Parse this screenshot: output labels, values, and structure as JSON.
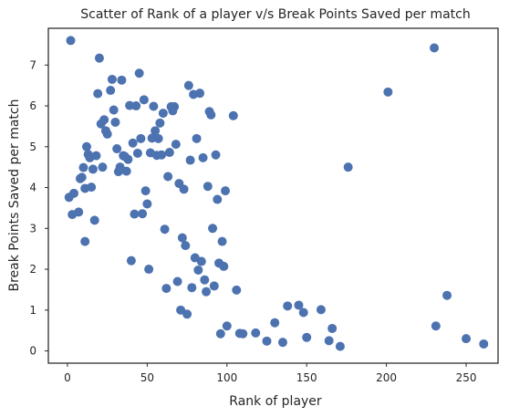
{
  "chart_data": {
    "type": "scatter",
    "title": "Scatter of Rank of a player v/s Break Points Saved per match",
    "xlabel": "Rank of player",
    "ylabel": "Break Points Saved per match",
    "xlim": [
      -12,
      270
    ],
    "ylim": [
      -0.3,
      7.9
    ],
    "xticks": [
      0,
      50,
      100,
      150,
      200,
      250
    ],
    "yticks": [
      0,
      1,
      2,
      3,
      4,
      5,
      6,
      7
    ],
    "grid": false,
    "legend": "none",
    "colors": {
      "marker": "#4c72b0",
      "axes": "#262626",
      "background": "#ffffff"
    },
    "series": [
      {
        "points": [
          [
            1,
            3.76
          ],
          [
            2,
            7.6
          ],
          [
            3,
            3.34
          ],
          [
            4,
            3.86
          ],
          [
            7,
            3.4
          ],
          [
            8,
            4.22
          ],
          [
            9,
            4.25
          ],
          [
            10,
            4.49
          ],
          [
            11,
            2.68
          ],
          [
            11,
            3.98
          ],
          [
            12,
            5.0
          ],
          [
            13,
            4.81
          ],
          [
            14,
            4.73
          ],
          [
            15,
            4.01
          ],
          [
            16,
            4.45
          ],
          [
            17,
            3.2
          ],
          [
            18,
            4.78
          ],
          [
            19,
            6.3
          ],
          [
            20,
            7.17
          ],
          [
            21,
            5.56
          ],
          [
            22,
            4.5
          ],
          [
            23,
            5.66
          ],
          [
            24,
            5.39
          ],
          [
            25,
            5.31
          ],
          [
            27,
            6.38
          ],
          [
            28,
            6.65
          ],
          [
            29,
            5.9
          ],
          [
            30,
            5.6
          ],
          [
            31,
            4.95
          ],
          [
            32,
            4.39
          ],
          [
            33,
            4.5
          ],
          [
            34,
            6.63
          ],
          [
            35,
            4.78
          ],
          [
            36,
            4.76
          ],
          [
            37,
            4.4
          ],
          [
            38,
            4.69
          ],
          [
            39,
            6.01
          ],
          [
            40,
            2.21
          ],
          [
            41,
            5.09
          ],
          [
            42,
            3.35
          ],
          [
            43,
            6.0
          ],
          [
            44,
            4.84
          ],
          [
            45,
            6.8
          ],
          [
            46,
            5.2
          ],
          [
            47,
            3.36
          ],
          [
            48,
            6.15
          ],
          [
            49,
            3.92
          ],
          [
            50,
            3.6
          ],
          [
            51,
            2.0
          ],
          [
            52,
            4.85
          ],
          [
            53,
            5.21
          ],
          [
            54,
            5.99
          ],
          [
            55,
            5.39
          ],
          [
            56,
            4.79
          ],
          [
            57,
            5.2
          ],
          [
            58,
            5.58
          ],
          [
            59,
            4.8
          ],
          [
            60,
            5.82
          ],
          [
            61,
            2.98
          ],
          [
            62,
            1.53
          ],
          [
            63,
            4.27
          ],
          [
            64,
            4.86
          ],
          [
            65,
            5.98
          ],
          [
            66,
            5.88
          ],
          [
            67,
            5.98
          ],
          [
            68,
            5.06
          ],
          [
            69,
            1.7
          ],
          [
            70,
            4.1
          ],
          [
            71,
            1.0
          ],
          [
            72,
            2.77
          ],
          [
            73,
            3.96
          ],
          [
            74,
            2.58
          ],
          [
            75,
            0.9
          ],
          [
            76,
            6.5
          ],
          [
            77,
            4.67
          ],
          [
            78,
            1.55
          ],
          [
            79,
            6.28
          ],
          [
            80,
            2.28
          ],
          [
            81,
            5.2
          ],
          [
            82,
            1.98
          ],
          [
            83,
            6.31
          ],
          [
            84,
            2.19
          ],
          [
            85,
            4.73
          ],
          [
            86,
            1.74
          ],
          [
            87,
            1.45
          ],
          [
            88,
            4.03
          ],
          [
            89,
            5.86
          ],
          [
            90,
            5.78
          ],
          [
            91,
            3.0
          ],
          [
            92,
            1.59
          ],
          [
            93,
            4.8
          ],
          [
            94,
            3.71
          ],
          [
            95,
            2.15
          ],
          [
            96,
            0.42
          ],
          [
            97,
            2.68
          ],
          [
            98,
            2.07
          ],
          [
            99,
            3.92
          ],
          [
            100,
            0.61
          ],
          [
            104,
            5.76
          ],
          [
            106,
            1.49
          ],
          [
            108,
            0.43
          ],
          [
            110,
            0.42
          ],
          [
            118,
            0.44
          ],
          [
            125,
            0.24
          ],
          [
            130,
            0.69
          ],
          [
            135,
            0.21
          ],
          [
            138,
            1.1
          ],
          [
            145,
            1.12
          ],
          [
            148,
            0.94
          ],
          [
            150,
            0.33
          ],
          [
            159,
            1.01
          ],
          [
            164,
            0.25
          ],
          [
            166,
            0.55
          ],
          [
            171,
            0.11
          ],
          [
            176,
            4.5
          ],
          [
            201,
            6.34
          ],
          [
            230,
            7.42
          ],
          [
            231,
            0.61
          ],
          [
            238,
            1.36
          ],
          [
            250,
            0.3
          ],
          [
            261,
            0.17
          ]
        ]
      }
    ]
  }
}
